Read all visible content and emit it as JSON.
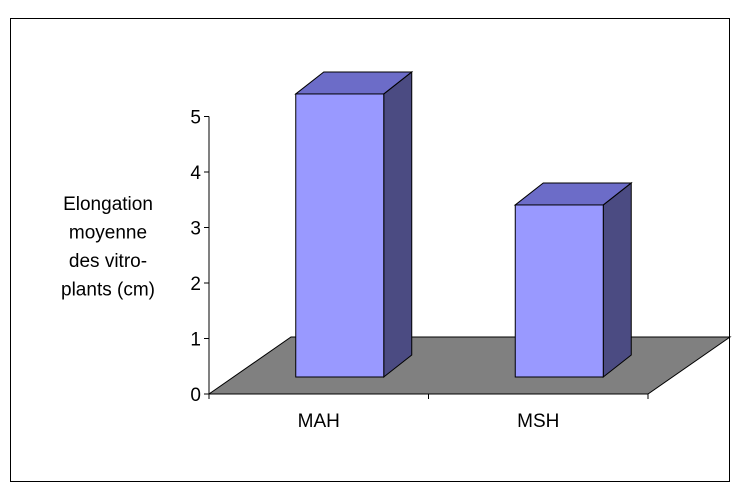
{
  "chart_data": {
    "type": "bar",
    "categories": [
      "MAH",
      "MSH"
    ],
    "values": [
      5.1,
      3.1
    ],
    "ylabel_lines": [
      "Elongation",
      "moyenne",
      "des vitro-",
      "plants (cm)"
    ],
    "ylim": [
      0,
      5
    ],
    "yticks": [
      "0",
      "1",
      "2",
      "3",
      "4",
      "5"
    ],
    "style": "3d-column",
    "grid": false,
    "legend": "none",
    "colors": {
      "bar_front": "#9999ff",
      "bar_top": "#6c6cc8",
      "bar_side": "#4b4b82",
      "floor": "#808080",
      "axis": "#000000"
    }
  }
}
